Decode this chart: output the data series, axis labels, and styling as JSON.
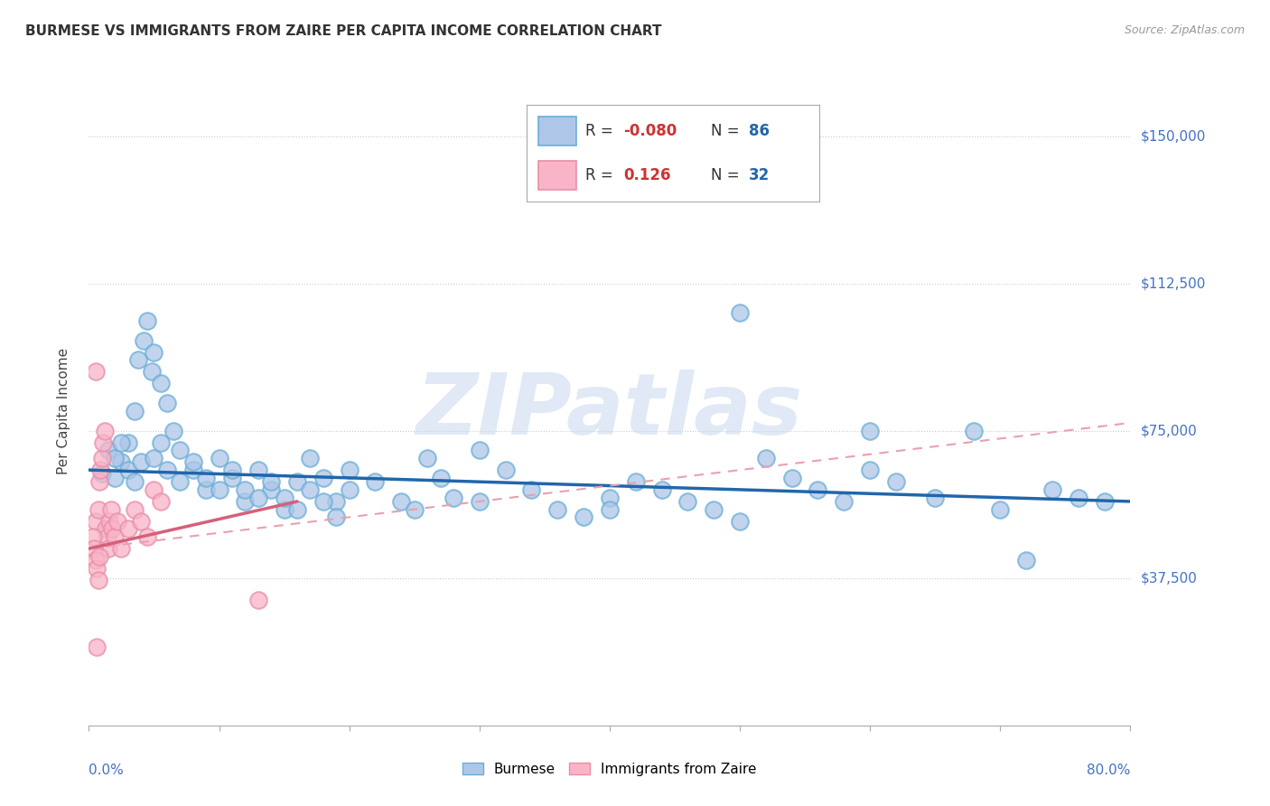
{
  "title": "BURMESE VS IMMIGRANTS FROM ZAIRE PER CAPITA INCOME CORRELATION CHART",
  "source": "Source: ZipAtlas.com",
  "ylabel": "Per Capita Income",
  "yticks": [
    0,
    37500,
    75000,
    112500,
    150000
  ],
  "ytick_labels": [
    "",
    "$37,500",
    "$75,000",
    "$112,500",
    "$150,000"
  ],
  "xlim": [
    0.0,
    80.0
  ],
  "ylim": [
    0,
    160000
  ],
  "watermark": "ZIPatlas",
  "legend_label1": "Burmese",
  "legend_label2": "Immigrants from Zaire",
  "blue_color_face": "#aec6e8",
  "blue_color_edge": "#6baed6",
  "pink_color_face": "#f9b4c8",
  "pink_color_edge": "#e88fa8",
  "blue_line_color": "#2166ac",
  "pink_line_solid_color": "#d6607a",
  "pink_line_dash_color": "#e8a0b0",
  "grid_color": "#cccccc",
  "bg_color": "#ffffff",
  "blue_scatter": [
    [
      1.0,
      64000
    ],
    [
      1.5,
      70000
    ],
    [
      2.0,
      63000
    ],
    [
      2.5,
      67000
    ],
    [
      3.0,
      72000
    ],
    [
      3.5,
      80000
    ],
    [
      3.8,
      93000
    ],
    [
      4.2,
      98000
    ],
    [
      4.5,
      103000
    ],
    [
      4.8,
      90000
    ],
    [
      5.0,
      95000
    ],
    [
      5.5,
      87000
    ],
    [
      6.0,
      82000
    ],
    [
      6.5,
      75000
    ],
    [
      7.0,
      70000
    ],
    [
      8.0,
      65000
    ],
    [
      9.0,
      60000
    ],
    [
      10.0,
      68000
    ],
    [
      11.0,
      63000
    ],
    [
      12.0,
      57000
    ],
    [
      13.0,
      65000
    ],
    [
      14.0,
      60000
    ],
    [
      15.0,
      55000
    ],
    [
      16.0,
      62000
    ],
    [
      17.0,
      68000
    ],
    [
      18.0,
      63000
    ],
    [
      19.0,
      57000
    ],
    [
      20.0,
      65000
    ],
    [
      22.0,
      62000
    ],
    [
      24.0,
      57000
    ],
    [
      25.0,
      55000
    ],
    [
      26.0,
      68000
    ],
    [
      27.0,
      63000
    ],
    [
      28.0,
      58000
    ],
    [
      30.0,
      70000
    ],
    [
      32.0,
      65000
    ],
    [
      34.0,
      60000
    ],
    [
      36.0,
      55000
    ],
    [
      38.0,
      53000
    ],
    [
      40.0,
      58000
    ],
    [
      42.0,
      62000
    ],
    [
      44.0,
      60000
    ],
    [
      46.0,
      57000
    ],
    [
      48.0,
      55000
    ],
    [
      50.0,
      52000
    ],
    [
      52.0,
      68000
    ],
    [
      54.0,
      63000
    ],
    [
      56.0,
      60000
    ],
    [
      58.0,
      57000
    ],
    [
      60.0,
      65000
    ],
    [
      62.0,
      62000
    ],
    [
      65.0,
      58000
    ],
    [
      68.0,
      75000
    ],
    [
      70.0,
      55000
    ],
    [
      72.0,
      42000
    ],
    [
      74.0,
      60000
    ],
    [
      76.0,
      58000
    ],
    [
      78.0,
      57000
    ],
    [
      2.0,
      68000
    ],
    [
      2.5,
      72000
    ],
    [
      3.0,
      65000
    ],
    [
      3.5,
      62000
    ],
    [
      4.0,
      67000
    ],
    [
      5.0,
      68000
    ],
    [
      5.5,
      72000
    ],
    [
      6.0,
      65000
    ],
    [
      7.0,
      62000
    ],
    [
      8.0,
      67000
    ],
    [
      9.0,
      63000
    ],
    [
      10.0,
      60000
    ],
    [
      11.0,
      65000
    ],
    [
      12.0,
      60000
    ],
    [
      13.0,
      58000
    ],
    [
      14.0,
      62000
    ],
    [
      15.0,
      58000
    ],
    [
      16.0,
      55000
    ],
    [
      17.0,
      60000
    ],
    [
      18.0,
      57000
    ],
    [
      19.0,
      53000
    ],
    [
      20.0,
      60000
    ],
    [
      30.0,
      57000
    ],
    [
      40.0,
      55000
    ],
    [
      50.0,
      105000
    ],
    [
      60.0,
      75000
    ]
  ],
  "pink_scatter": [
    [
      0.5,
      52000
    ],
    [
      0.7,
      55000
    ],
    [
      0.8,
      62000
    ],
    [
      0.9,
      65000
    ],
    [
      1.0,
      68000
    ],
    [
      1.1,
      72000
    ],
    [
      1.2,
      75000
    ],
    [
      1.3,
      50000
    ],
    [
      1.4,
      48000
    ],
    [
      1.5,
      45000
    ],
    [
      1.6,
      52000
    ],
    [
      1.7,
      55000
    ],
    [
      1.8,
      50000
    ],
    [
      2.0,
      48000
    ],
    [
      2.2,
      52000
    ],
    [
      2.5,
      45000
    ],
    [
      3.0,
      50000
    ],
    [
      3.5,
      55000
    ],
    [
      4.0,
      52000
    ],
    [
      4.5,
      48000
    ],
    [
      5.0,
      60000
    ],
    [
      5.5,
      57000
    ],
    [
      0.5,
      90000
    ],
    [
      0.3,
      48000
    ],
    [
      0.4,
      45000
    ],
    [
      0.5,
      42000
    ],
    [
      0.6,
      40000
    ],
    [
      0.7,
      37000
    ],
    [
      0.8,
      43000
    ],
    [
      13.0,
      32000
    ],
    [
      0.6,
      20000
    ]
  ],
  "blue_line": {
    "x0": 0.0,
    "x1": 80.0,
    "y0": 65000,
    "y1": 57000
  },
  "pink_line_solid": {
    "x0": 0.0,
    "x1": 16.0,
    "y0": 45000,
    "y1": 57000
  },
  "pink_line_dash": {
    "x0": 0.0,
    "x1": 80.0,
    "y0": 45000,
    "y1": 77000
  }
}
